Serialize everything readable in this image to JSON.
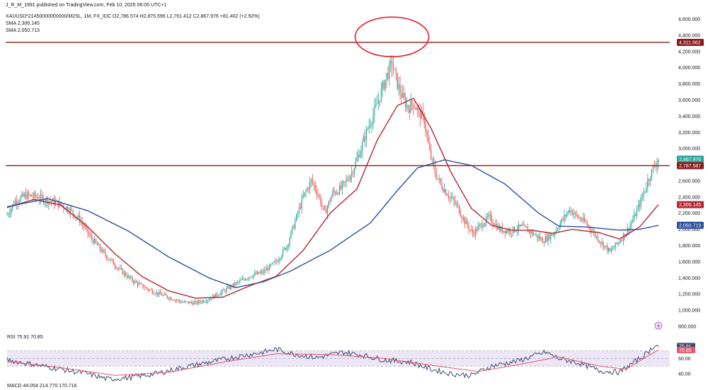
{
  "header": {
    "published": "J_R_M_1991 published on TradingView.com, Feb 10, 2025 06:05 UTC+1",
    "symbol_line": "XAUUSD*21450000000000/M2SL, 1M, FX_IDC  O2,786.574  H2,875.596  L2,761.412  C2,867.976  +81.402 (+2.92%)",
    "sma1": "SMA  2,306.145",
    "sma2": "SMA  2,050.713"
  },
  "colors": {
    "up": "#26a69a",
    "down": "#ef5350",
    "sma_fast": "#b22833",
    "sma_slow": "#2c4f9e",
    "hline": "#8b1a1a",
    "circle": "#e8202a",
    "rsi": "#3f4a6b",
    "rsi_ma": "#e05a6e",
    "rsi_band": "#ece6f7"
  },
  "price_axis": {
    "ticks": [
      "4,600.000",
      "4,400.000",
      "4,200.000",
      "4,000.000",
      "3,800.000",
      "3,600.000",
      "3,400.000",
      "3,200.000",
      "3,000.000",
      "2,600.000",
      "2,400.000",
      "2,200.000",
      "2,000.000",
      "1,800.000",
      "1,600.000",
      "1,400.000",
      "1,200.000",
      "1,000.000",
      "800.000"
    ],
    "tick_values": [
      4600,
      4400,
      4200,
      4000,
      3800,
      3600,
      3400,
      3200,
      3000,
      2600,
      2400,
      2200,
      2000,
      1800,
      1600,
      1400,
      1200,
      1000,
      800
    ],
    "badges": [
      {
        "label": "4,311.862",
        "value": 4311.862,
        "color": "#8b1a1a"
      },
      {
        "label": "2,867.976",
        "value": 2867.976,
        "color": "#26a69a"
      },
      {
        "label": "2,787.587",
        "value": 2787.587,
        "color": "#8b1a1a"
      },
      {
        "label": "2,306.145",
        "value": 2306.145,
        "color": "#b22833"
      },
      {
        "label": "2,050.713",
        "value": 2050.713,
        "color": "#2c4f9e"
      }
    ]
  },
  "rsi_panel": {
    "label": "RSI  75.91  70.85",
    "ticks": [
      "60.00",
      "40.00"
    ],
    "tick_values": [
      60,
      40
    ],
    "badges": [
      {
        "label": "75.91",
        "value": 75.91,
        "color": "#3f4a6b"
      },
      {
        "label": "70.85",
        "value": 70.85,
        "color": "#e05a6e"
      }
    ]
  },
  "macd_panel": {
    "label": "MACD  44.054  214.770  170.716"
  },
  "chart_data": {
    "type": "candlestick",
    "price_range": [
      750,
      4700
    ],
    "grid": false,
    "horizontal_lines": [
      4311.862,
      2787.587
    ],
    "circle_annotation_around_peak": true,
    "anchors": [
      [
        0,
        2180
      ],
      [
        6,
        2350
      ],
      [
        14,
        2420
      ],
      [
        22,
        2400
      ],
      [
        30,
        2360
      ],
      [
        38,
        2320
      ],
      [
        46,
        2250
      ],
      [
        54,
        2120
      ],
      [
        62,
        1900
      ],
      [
        72,
        1700
      ],
      [
        82,
        1530
      ],
      [
        92,
        1380
      ],
      [
        100,
        1300
      ],
      [
        110,
        1220
      ],
      [
        120,
        1160
      ],
      [
        130,
        1100
      ],
      [
        140,
        1090
      ],
      [
        150,
        1140
      ],
      [
        160,
        1230
      ],
      [
        170,
        1330
      ],
      [
        180,
        1420
      ],
      [
        190,
        1470
      ],
      [
        200,
        1600
      ],
      [
        208,
        1800
      ],
      [
        214,
        2100
      ],
      [
        220,
        2400
      ],
      [
        226,
        2600
      ],
      [
        230,
        2480
      ],
      [
        236,
        2200
      ],
      [
        242,
        2450
      ],
      [
        248,
        2500
      ],
      [
        256,
        2700
      ],
      [
        262,
        2950
      ],
      [
        268,
        3250
      ],
      [
        274,
        3500
      ],
      [
        278,
        3700
      ],
      [
        282,
        3900
      ],
      [
        286,
        4050
      ],
      [
        290,
        3800
      ],
      [
        294,
        3620
      ],
      [
        298,
        3500
      ],
      [
        302,
        3560
      ],
      [
        306,
        3450
      ],
      [
        310,
        3350
      ],
      [
        314,
        2950
      ],
      [
        318,
        2700
      ],
      [
        322,
        2560
      ],
      [
        328,
        2420
      ],
      [
        334,
        2300
      ],
      [
        340,
        2100
      ],
      [
        346,
        1950
      ],
      [
        352,
        2050
      ],
      [
        358,
        2150
      ],
      [
        366,
        2000
      ],
      [
        374,
        1980
      ],
      [
        382,
        2030
      ],
      [
        390,
        1960
      ],
      [
        398,
        1860
      ],
      [
        406,
        1950
      ],
      [
        412,
        2100
      ],
      [
        418,
        2250
      ],
      [
        424,
        2150
      ],
      [
        430,
        2080
      ],
      [
        436,
        1950
      ],
      [
        442,
        1830
      ],
      [
        448,
        1720
      ],
      [
        454,
        1840
      ],
      [
        460,
        1960
      ],
      [
        466,
        2150
      ],
      [
        472,
        2400
      ],
      [
        476,
        2600
      ],
      [
        481,
        2790
      ],
      [
        484,
        2868
      ]
    ],
    "sma_fast_anchors": [
      [
        0,
        2270
      ],
      [
        20,
        2370
      ],
      [
        40,
        2300
      ],
      [
        60,
        2030
      ],
      [
        80,
        1700
      ],
      [
        100,
        1420
      ],
      [
        120,
        1240
      ],
      [
        140,
        1150
      ],
      [
        160,
        1160
      ],
      [
        180,
        1300
      ],
      [
        200,
        1420
      ],
      [
        220,
        1740
      ],
      [
        240,
        2200
      ],
      [
        260,
        2500
      ],
      [
        275,
        3100
      ],
      [
        290,
        3530
      ],
      [
        302,
        3620
      ],
      [
        315,
        3250
      ],
      [
        330,
        2700
      ],
      [
        345,
        2260
      ],
      [
        360,
        2050
      ],
      [
        375,
        1990
      ],
      [
        390,
        1990
      ],
      [
        405,
        1950
      ],
      [
        420,
        2000
      ],
      [
        440,
        1960
      ],
      [
        455,
        1880
      ],
      [
        470,
        2030
      ],
      [
        484,
        2306
      ]
    ],
    "sma_slow_anchors": [
      [
        0,
        2280
      ],
      [
        30,
        2380
      ],
      [
        60,
        2230
      ],
      [
        90,
        1980
      ],
      [
        120,
        1660
      ],
      [
        150,
        1400
      ],
      [
        170,
        1280
      ],
      [
        190,
        1350
      ],
      [
        210,
        1480
      ],
      [
        240,
        1740
      ],
      [
        270,
        2080
      ],
      [
        290,
        2480
      ],
      [
        305,
        2760
      ],
      [
        325,
        2860
      ],
      [
        345,
        2790
      ],
      [
        370,
        2560
      ],
      [
        395,
        2200
      ],
      [
        410,
        2040
      ],
      [
        430,
        2030
      ],
      [
        455,
        1990
      ],
      [
        470,
        2000
      ],
      [
        484,
        2050
      ]
    ],
    "rsi_range": [
      30,
      85
    ],
    "rsi_anchors": [
      [
        0,
        58
      ],
      [
        20,
        52
      ],
      [
        40,
        46
      ],
      [
        60,
        40
      ],
      [
        75,
        33
      ],
      [
        90,
        35
      ],
      [
        110,
        40
      ],
      [
        130,
        48
      ],
      [
        150,
        55
      ],
      [
        170,
        62
      ],
      [
        190,
        68
      ],
      [
        200,
        72
      ],
      [
        212,
        66
      ],
      [
        230,
        61
      ],
      [
        250,
        68
      ],
      [
        265,
        64
      ],
      [
        280,
        58
      ],
      [
        300,
        55
      ],
      [
        315,
        46
      ],
      [
        330,
        40
      ],
      [
        345,
        38
      ],
      [
        360,
        50
      ],
      [
        380,
        57
      ],
      [
        400,
        68
      ],
      [
        410,
        60
      ],
      [
        425,
        54
      ],
      [
        440,
        44
      ],
      [
        455,
        42
      ],
      [
        465,
        54
      ],
      [
        475,
        66
      ],
      [
        481,
        77
      ],
      [
        484,
        75.91
      ]
    ],
    "rsi_ma_anchors": [
      [
        0,
        56
      ],
      [
        40,
        48
      ],
      [
        80,
        38
      ],
      [
        120,
        42
      ],
      [
        160,
        55
      ],
      [
        200,
        66
      ],
      [
        240,
        65
      ],
      [
        280,
        60
      ],
      [
        320,
        50
      ],
      [
        350,
        43
      ],
      [
        380,
        52
      ],
      [
        410,
        62
      ],
      [
        440,
        50
      ],
      [
        460,
        46
      ],
      [
        475,
        62
      ],
      [
        484,
        70.85
      ]
    ],
    "rsi_bands": [
      70,
      50
    ]
  }
}
